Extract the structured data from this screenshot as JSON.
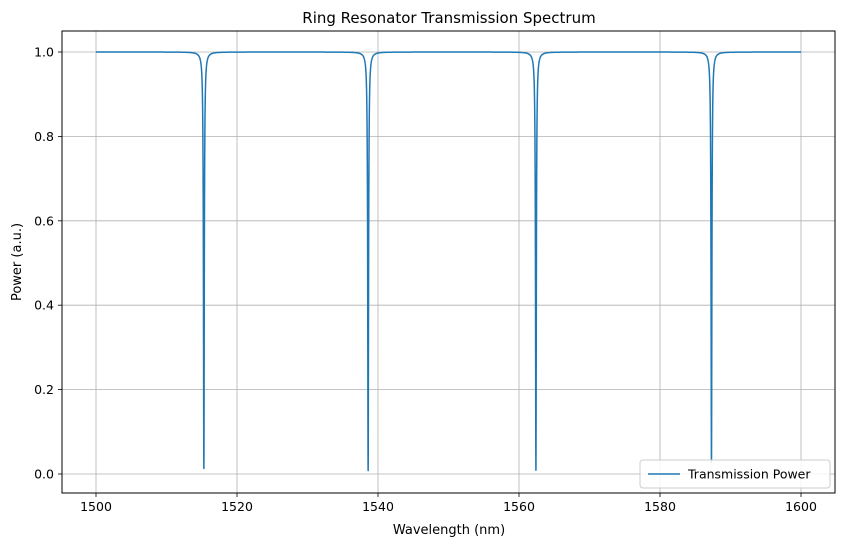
{
  "chart_data": {
    "type": "line",
    "title": "Ring Resonator Transmission Spectrum",
    "xlabel": "Wavelength (nm)",
    "ylabel": "Power (a.u.)",
    "xlim": [
      1500,
      1600
    ],
    "ylim": [
      0.0,
      1.0
    ],
    "x_ticks": [
      1500,
      1520,
      1540,
      1560,
      1580,
      1600
    ],
    "y_ticks": [
      0.0,
      0.2,
      0.4,
      0.6,
      0.8,
      1.0
    ],
    "x_tick_labels": [
      "1500",
      "1520",
      "1540",
      "1560",
      "1580",
      "1600"
    ],
    "y_tick_labels": [
      "0.0",
      "0.2",
      "0.4",
      "0.6",
      "0.8",
      "1.0"
    ],
    "grid": true,
    "legend_position": "lower right",
    "series": [
      {
        "name": "Transmission Power",
        "color": "#1f77b4",
        "baseline": 1.0,
        "resonances": [
          {
            "wavelength": 1515.3,
            "min_power": 0.013
          },
          {
            "wavelength": 1538.6,
            "min_power": 0.008
          },
          {
            "wavelength": 1562.4,
            "min_power": 0.009
          },
          {
            "wavelength": 1587.3,
            "min_power": 0.028
          }
        ]
      }
    ]
  }
}
